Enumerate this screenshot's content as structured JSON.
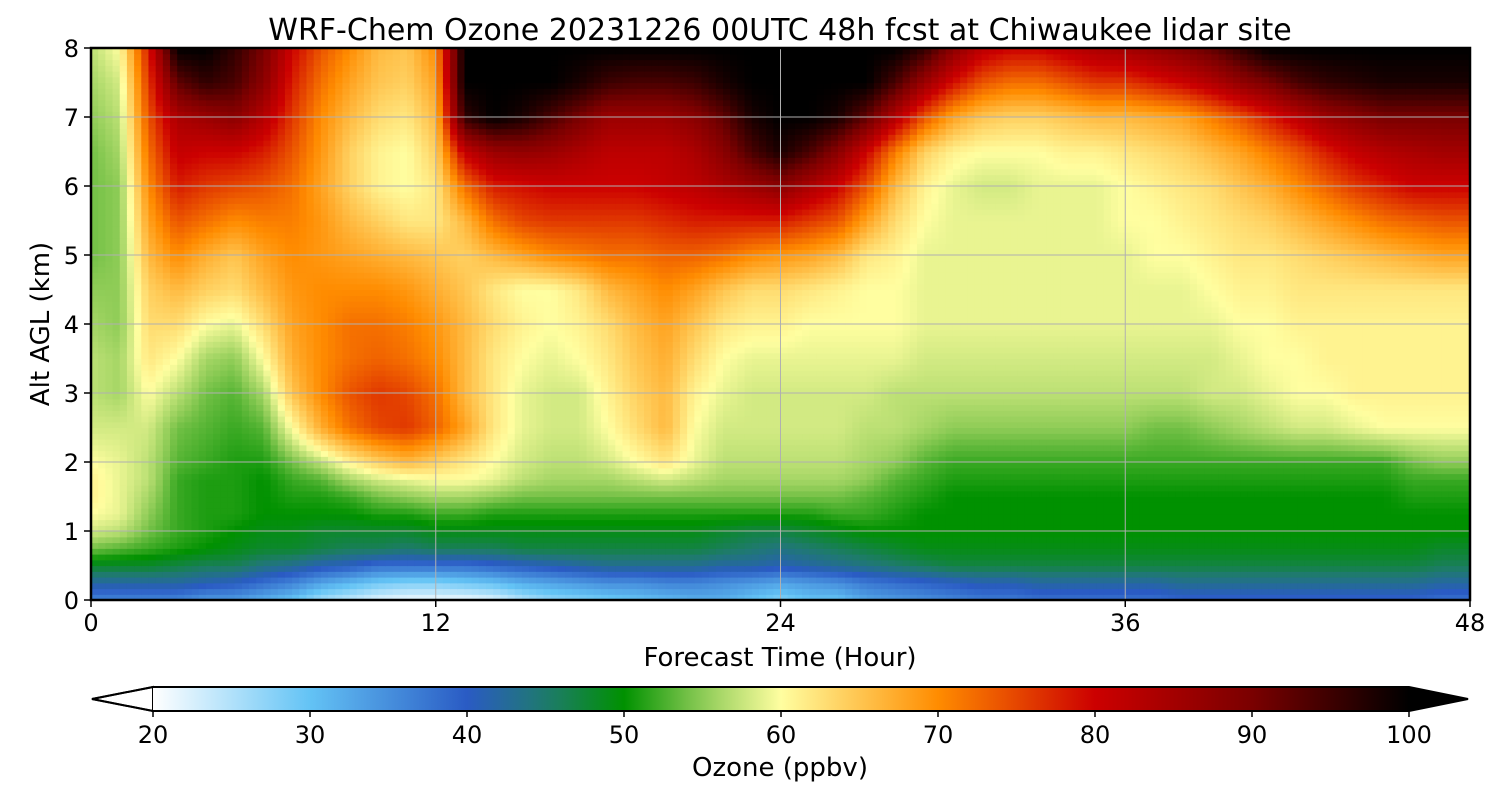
{
  "chart_data": {
    "type": "heatmap",
    "title": "WRF-Chem Ozone  20231226 00UTC 48h fcst at Chiwaukee lidar site",
    "xlabel": "Forecast Time (Hour)",
    "ylabel": "Alt AGL (km)",
    "xlim": [
      0,
      48
    ],
    "ylim": [
      0,
      8
    ],
    "x_ticks": [
      0,
      12,
      24,
      36,
      48
    ],
    "x_tick_labels": [
      "0",
      "12",
      "24",
      "36",
      "48"
    ],
    "y_ticks": [
      0,
      1,
      2,
      3,
      4,
      5,
      6,
      7,
      8
    ],
    "y_tick_labels": [
      "0",
      "1",
      "2",
      "3",
      "4",
      "5",
      "6",
      "7",
      "8"
    ],
    "grid": true,
    "x_hours": [
      0,
      1,
      2,
      3,
      4,
      5,
      6,
      7,
      8,
      9,
      10,
      11,
      12,
      13,
      14,
      15,
      16,
      17,
      18,
      19,
      20,
      21,
      22,
      23,
      24,
      25,
      26,
      27,
      28,
      29,
      30,
      31,
      32,
      33,
      34,
      35,
      36,
      37,
      38,
      39,
      40,
      41,
      42,
      43,
      44,
      45,
      46,
      47,
      48
    ],
    "y_km": [
      0,
      0.25,
      0.5,
      0.75,
      1,
      1.25,
      1.5,
      1.75,
      2,
      2.5,
      3,
      3.5,
      4,
      4.5,
      5,
      5.5,
      6,
      6.5,
      7,
      7.5,
      8
    ],
    "ozone_ppbv": [
      [
        36,
        36,
        36,
        36,
        34,
        34,
        32,
        30,
        26,
        24,
        22,
        21,
        21,
        21,
        22,
        25,
        27,
        28,
        29,
        30,
        31,
        32,
        32,
        30,
        28,
        30,
        30,
        33,
        34,
        35,
        36,
        37,
        37,
        38,
        38,
        38,
        38,
        38,
        39,
        39,
        39,
        39,
        39,
        39,
        39,
        39,
        39,
        38,
        38
      ],
      [
        42,
        42,
        42,
        42,
        41,
        40,
        38,
        36,
        33,
        31,
        29,
        28,
        28,
        29,
        30,
        32,
        33,
        34,
        35,
        35,
        36,
        36,
        35,
        34,
        33,
        34,
        35,
        37,
        38,
        39,
        40,
        41,
        41,
        42,
        42,
        42,
        42,
        42,
        43,
        43,
        43,
        43,
        43,
        43,
        43,
        43,
        43,
        42,
        42
      ],
      [
        48,
        48,
        48,
        47,
        46,
        46,
        44,
        43,
        41,
        40,
        38,
        38,
        38,
        38,
        39,
        40,
        41,
        42,
        43,
        43,
        43,
        43,
        42,
        42,
        41,
        42,
        43,
        44,
        45,
        46,
        47,
        47,
        47,
        47,
        47,
        47,
        47,
        47,
        47,
        47,
        47,
        47,
        47,
        47,
        47,
        47,
        47,
        46,
        46
      ],
      [
        54,
        53,
        52,
        51,
        50,
        49,
        48,
        48,
        47,
        46,
        46,
        45,
        46,
        46,
        46,
        47,
        47,
        47,
        47,
        47,
        47,
        47,
        46,
        45,
        44,
        45,
        46,
        47,
        48,
        49,
        49,
        49,
        49,
        49,
        49,
        49,
        49,
        49,
        49,
        49,
        49,
        49,
        49,
        49,
        49,
        49,
        49,
        48,
        48
      ],
      [
        58,
        57,
        54,
        52,
        51,
        50,
        49,
        49,
        48,
        48,
        48,
        48,
        49,
        49,
        49,
        49,
        49,
        49,
        49,
        49,
        49,
        49,
        48,
        47,
        47,
        48,
        49,
        50,
        50,
        50,
        50,
        50,
        50,
        50,
        50,
        50,
        50,
        50,
        50,
        50,
        50,
        50,
        50,
        50,
        50,
        50,
        50,
        50,
        50
      ],
      [
        60,
        59,
        55,
        52,
        51,
        51,
        50,
        50,
        50,
        50,
        51,
        51,
        52,
        52,
        51,
        51,
        51,
        51,
        51,
        51,
        51,
        51,
        51,
        51,
        51,
        51,
        52,
        52,
        51,
        50,
        50,
        50,
        50,
        50,
        50,
        50,
        50,
        50,
        50,
        50,
        50,
        50,
        50,
        50,
        50,
        50,
        50,
        50,
        50
      ],
      [
        61,
        59,
        56,
        52,
        51,
        51,
        50,
        51,
        51,
        52,
        54,
        55,
        56,
        56,
        55,
        54,
        54,
        54,
        54,
        54,
        54,
        54,
        54,
        54,
        54,
        54,
        54,
        53,
        52,
        51,
        50,
        50,
        50,
        50,
        50,
        50,
        50,
        50,
        50,
        50,
        50,
        50,
        50,
        50,
        50,
        50,
        51,
        51,
        51
      ],
      [
        61,
        59,
        57,
        52,
        51,
        51,
        50,
        52,
        53,
        56,
        58,
        59,
        60,
        60,
        59,
        57,
        56,
        56,
        56,
        57,
        58,
        57,
        56,
        56,
        56,
        56,
        56,
        55,
        53,
        52,
        51,
        51,
        51,
        51,
        51,
        51,
        51,
        51,
        51,
        51,
        51,
        51,
        51,
        51,
        51,
        51,
        52,
        52,
        52
      ],
      [
        60,
        59,
        57,
        53,
        52,
        51,
        51,
        54,
        57,
        61,
        64,
        66,
        64,
        62,
        60,
        58,
        57,
        57,
        58,
        60,
        62,
        59,
        57,
        57,
        57,
        57,
        57,
        56,
        55,
        53,
        52,
        52,
        52,
        52,
        52,
        52,
        52,
        52,
        52,
        52,
        52,
        52,
        52,
        52,
        52,
        52,
        54,
        55,
        55
      ],
      [
        58,
        58,
        58,
        54,
        53,
        52,
        53,
        60,
        67,
        72,
        75,
        76,
        73,
        68,
        62,
        59,
        58,
        58,
        60,
        63,
        66,
        60,
        58,
        58,
        58,
        58,
        58,
        57,
        57,
        56,
        55,
        55,
        55,
        55,
        55,
        55,
        55,
        54,
        54,
        55,
        56,
        57,
        58,
        58,
        59,
        60,
        60,
        60,
        60
      ],
      [
        57,
        56,
        60,
        57,
        54,
        53,
        56,
        65,
        70,
        74,
        76,
        75,
        72,
        66,
        62,
        59,
        58,
        58,
        61,
        64,
        66,
        61,
        59,
        58,
        58,
        58,
        58,
        58,
        57,
        57,
        57,
        57,
        57,
        57,
        57,
        57,
        57,
        57,
        57,
        58,
        58,
        59,
        60,
        60,
        61,
        61,
        61,
        61,
        61
      ],
      [
        57,
        56,
        62,
        60,
        56,
        55,
        60,
        67,
        70,
        72,
        73,
        72,
        70,
        66,
        62,
        60,
        59,
        60,
        62,
        65,
        67,
        63,
        60,
        59,
        59,
        59,
        59,
        59,
        59,
        58,
        58,
        58,
        58,
        58,
        58,
        58,
        58,
        58,
        58,
        58,
        59,
        60,
        60,
        61,
        61,
        61,
        61,
        61,
        61
      ],
      [
        56,
        55,
        63,
        63,
        60,
        59,
        63,
        68,
        70,
        72,
        72,
        71,
        69,
        66,
        63,
        61,
        60,
        61,
        63,
        66,
        68,
        65,
        62,
        61,
        61,
        60,
        60,
        60,
        60,
        59,
        59,
        59,
        59,
        59,
        59,
        59,
        59,
        59,
        59,
        59,
        60,
        60,
        61,
        61,
        61,
        61,
        61,
        61,
        61
      ],
      [
        55,
        55,
        64,
        66,
        64,
        63,
        66,
        69,
        70,
        70,
        70,
        69,
        67,
        65,
        62,
        60,
        60,
        62,
        66,
        68,
        70,
        68,
        65,
        63,
        63,
        62,
        61,
        60,
        60,
        59,
        59,
        59,
        59,
        59,
        59,
        59,
        59,
        59,
        59,
        60,
        61,
        61,
        62,
        62,
        62,
        62,
        62,
        62,
        62
      ],
      [
        54,
        55,
        66,
        70,
        67,
        65,
        68,
        70,
        69,
        68,
        67,
        66,
        65,
        64,
        66,
        68,
        70,
        71,
        72,
        72,
        73,
        73,
        72,
        70,
        69,
        68,
        66,
        62,
        61,
        59,
        59,
        59,
        59,
        59,
        59,
        59,
        59,
        60,
        60,
        61,
        62,
        62,
        63,
        64,
        65,
        66,
        67,
        68,
        68
      ],
      [
        54,
        55,
        68,
        74,
        72,
        70,
        71,
        71,
        69,
        66,
        64,
        62,
        62,
        66,
        72,
        75,
        76,
        76,
        76,
        76,
        77,
        78,
        78,
        78,
        78,
        76,
        74,
        68,
        63,
        60,
        59,
        59,
        59,
        59,
        59,
        59,
        60,
        60,
        61,
        62,
        63,
        64,
        66,
        68,
        70,
        72,
        73,
        74,
        74
      ],
      [
        54,
        55,
        70,
        78,
        76,
        75,
        74,
        72,
        68,
        64,
        61,
        60,
        62,
        72,
        78,
        79,
        80,
        80,
        80,
        80,
        81,
        82,
        84,
        86,
        88,
        84,
        80,
        74,
        66,
        61,
        59,
        58,
        58,
        59,
        59,
        59,
        60,
        61,
        62,
        63,
        65,
        67,
        70,
        73,
        76,
        78,
        80,
        80,
        80
      ],
      [
        54,
        56,
        72,
        81,
        80,
        80,
        78,
        74,
        69,
        64,
        61,
        60,
        64,
        81,
        86,
        87,
        86,
        84,
        82,
        82,
        82,
        84,
        88,
        94,
        98,
        94,
        88,
        80,
        71,
        64,
        61,
        60,
        60,
        60,
        61,
        61,
        62,
        63,
        64,
        66,
        68,
        71,
        74,
        78,
        81,
        83,
        84,
        85,
        85
      ],
      [
        55,
        57,
        74,
        84,
        86,
        88,
        83,
        76,
        70,
        66,
        63,
        62,
        66,
        96,
        100,
        98,
        94,
        90,
        86,
        86,
        86,
        88,
        92,
        98,
        100,
        100,
        98,
        92,
        83,
        74,
        68,
        65,
        64,
        64,
        65,
        66,
        66,
        67,
        68,
        71,
        74,
        78,
        82,
        86,
        88,
        90,
        90,
        90,
        90
      ],
      [
        56,
        58,
        76,
        92,
        96,
        94,
        88,
        78,
        72,
        68,
        65,
        64,
        68,
        100,
        100,
        100,
        100,
        98,
        95,
        94,
        94,
        95,
        98,
        100,
        100,
        100,
        100,
        100,
        94,
        86,
        79,
        74,
        72,
        72,
        74,
        76,
        76,
        78,
        80,
        83,
        87,
        90,
        94,
        96,
        97,
        98,
        98,
        98,
        98
      ],
      [
        57,
        60,
        78,
        100,
        100,
        96,
        90,
        80,
        74,
        70,
        66,
        65,
        70,
        100,
        100,
        100,
        100,
        100,
        100,
        100,
        100,
        100,
        100,
        100,
        100,
        100,
        100,
        100,
        100,
        96,
        88,
        82,
        80,
        80,
        82,
        84,
        85,
        87,
        89,
        92,
        96,
        100,
        100,
        100,
        100,
        100,
        100,
        100,
        100
      ]
    ],
    "colorbar": {
      "label": "Ozone  (ppbv)",
      "min": 20,
      "max": 100,
      "ticks": [
        20,
        30,
        40,
        50,
        60,
        70,
        80,
        90,
        100
      ],
      "tick_labels": [
        "20",
        "30",
        "40",
        "50",
        "60",
        "70",
        "80",
        "90",
        "100"
      ],
      "extend": "both",
      "under_color": "#ffffff",
      "over_color": "#000000",
      "color_stops": [
        {
          "value": 20,
          "color": "#ffffff"
        },
        {
          "value": 30,
          "color": "#63c3f5"
        },
        {
          "value": 40,
          "color": "#2a5bc4"
        },
        {
          "value": 45,
          "color": "#1f7a6e"
        },
        {
          "value": 50,
          "color": "#009100"
        },
        {
          "value": 55,
          "color": "#8fcc57"
        },
        {
          "value": 60,
          "color": "#fffea0"
        },
        {
          "value": 70,
          "color": "#ff8c00"
        },
        {
          "value": 80,
          "color": "#cc0000"
        },
        {
          "value": 90,
          "color": "#7a0000"
        },
        {
          "value": 100,
          "color": "#000000"
        }
      ]
    }
  }
}
